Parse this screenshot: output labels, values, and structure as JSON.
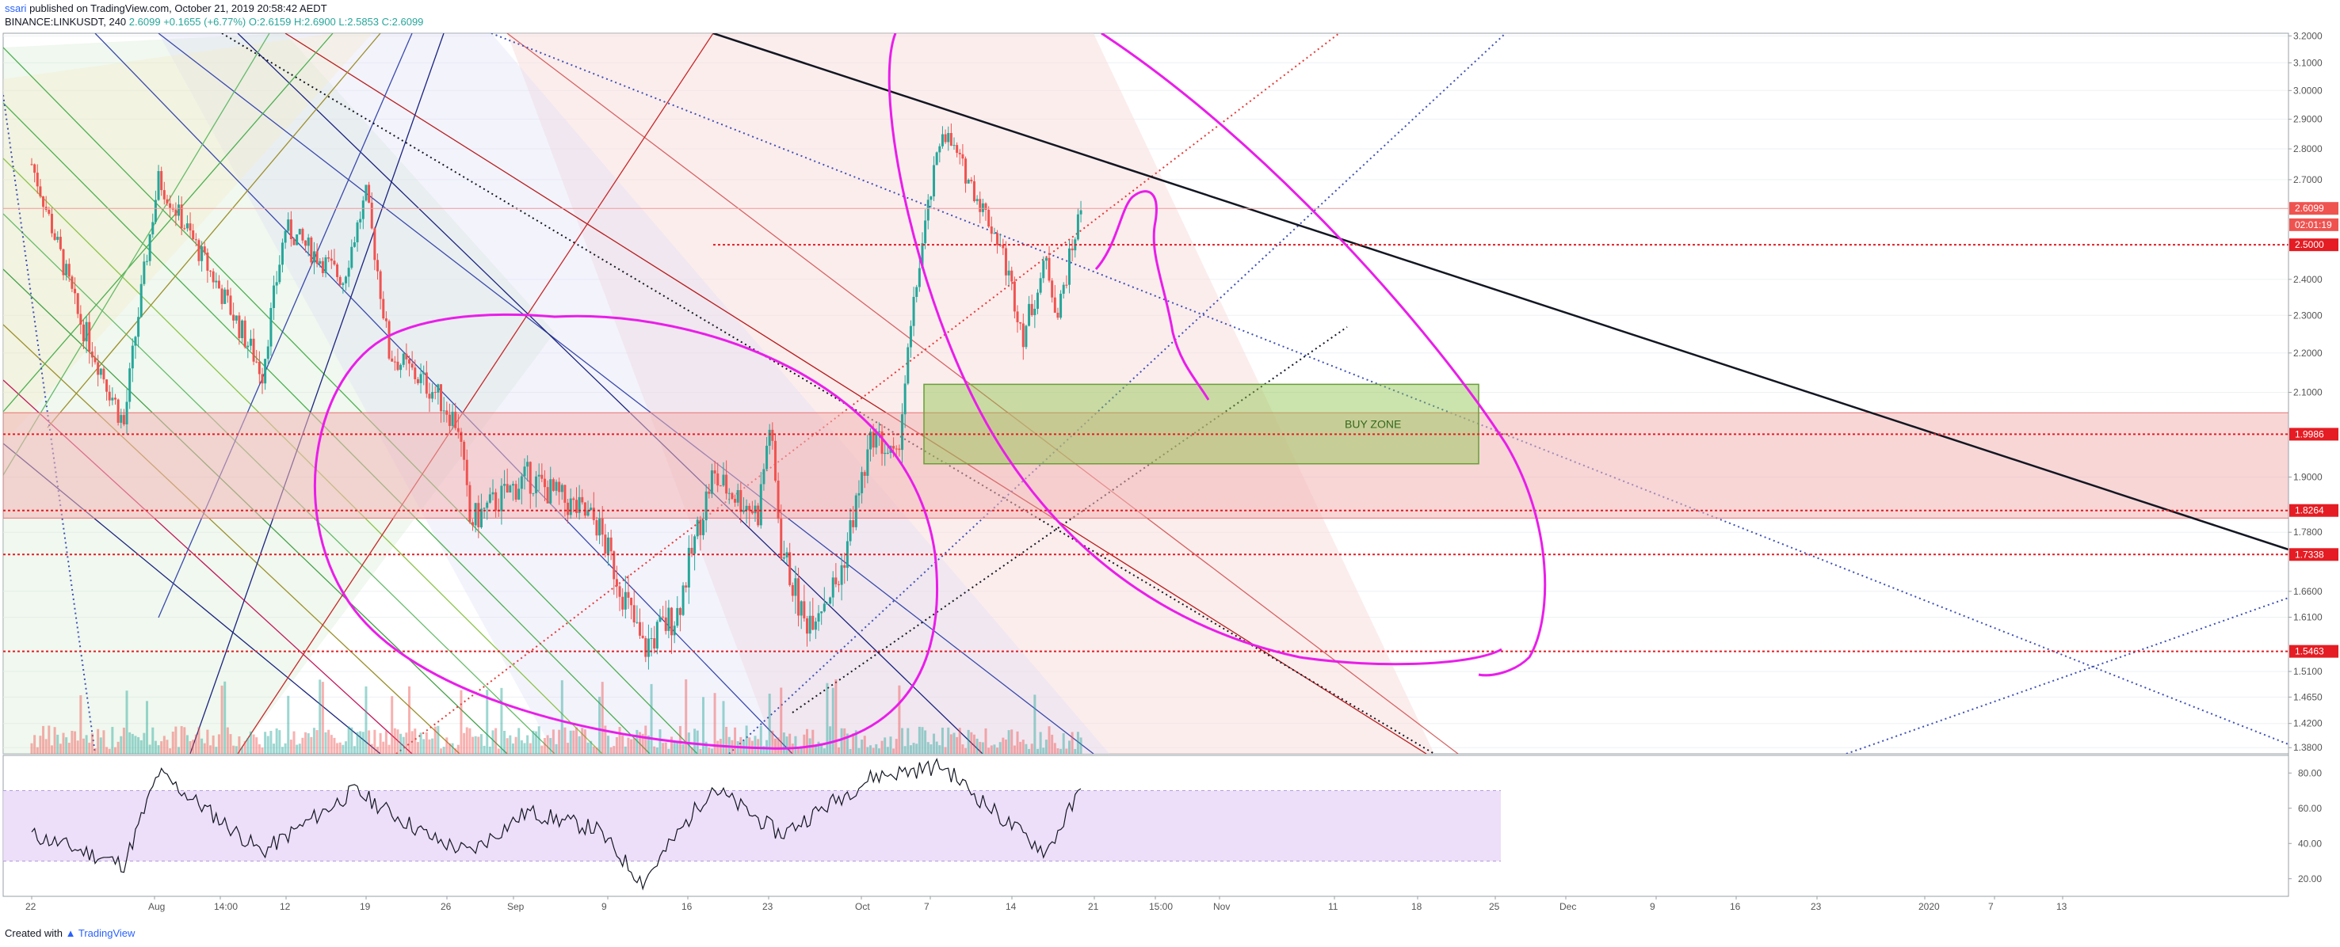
{
  "header": {
    "user": "ssari",
    "published_text": "published on TradingView.com, October 21, 2019 20:58:42 AEDT",
    "symbol_line": "BINANCE:LINKUSDT, 240",
    "last": "2.6099",
    "change": "+0.1655 (+6.77%)",
    "open": "O:2.6159",
    "high": "H:2.6900",
    "low": "L:2.5853",
    "close": "C:2.6099"
  },
  "colors": {
    "up": "#26a69a",
    "down": "#ef5350",
    "magenta": "#e91ee9",
    "level_red": "#e51c23",
    "buy_zone": "#8bc34a",
    "rsi_band": "#e9d6f7",
    "rsi_line": "#131722"
  },
  "price_axis": {
    "ticks": [
      "3.2000",
      "3.1000",
      "3.0000",
      "2.9000",
      "2.8000",
      "2.7000",
      "2.4000",
      "2.3000",
      "2.2000",
      "2.1000",
      "1.9000",
      "1.7800",
      "1.6600",
      "1.6100",
      "1.5100",
      "1.4650",
      "1.4200",
      "1.3800"
    ],
    "tags": [
      {
        "label": "2.6099",
        "price": 2.6099,
        "color": "#ef5350"
      },
      {
        "label": "02:01:19",
        "price": 2.56,
        "color": "#ef5350"
      },
      {
        "label": "2.5000",
        "price": 2.5,
        "color": "#e51c23"
      },
      {
        "label": "1.9986",
        "price": 1.9986,
        "color": "#e51c23"
      },
      {
        "label": "1.8264",
        "price": 1.8264,
        "color": "#e51c23"
      },
      {
        "label": "1.7338",
        "price": 1.7338,
        "color": "#e51c23"
      },
      {
        "label": "1.5463",
        "price": 1.5463,
        "color": "#e51c23"
      }
    ]
  },
  "rsi_axis": {
    "ticks": [
      "80.00",
      "60.00",
      "40.00",
      "20.00"
    ],
    "band_top": 70,
    "band_bottom": 30
  },
  "time_axis": {
    "labels": [
      "22",
      "Aug",
      "14:00",
      "12",
      "19",
      "26",
      "Sep",
      "9",
      "16",
      "23",
      "Oct",
      "7",
      "14",
      "21",
      "15:00",
      "Nov",
      "11",
      "18",
      "25",
      "Dec",
      "9",
      "16",
      "23",
      "2020",
      "7",
      "13"
    ]
  },
  "annotations": {
    "buy_zone_label": "BUY ZONE"
  },
  "footer": {
    "created_with": "Created with",
    "brand": "TradingView"
  },
  "chart_data": {
    "type": "line",
    "series_kind": "candlestick",
    "symbol": "BINANCE:LINKUSDT",
    "interval": "240",
    "ylim": [
      1.37,
      3.21
    ],
    "price_levels": [
      2.5,
      1.9986,
      1.8264,
      1.7338,
      1.5463
    ],
    "buy_zone": [
      1.93,
      2.12
    ],
    "price_path": [
      {
        "x": "Jul 22",
        "y": 2.75
      },
      {
        "x": "Jul 26",
        "y": 2.3
      },
      {
        "x": "Jul 30",
        "y": 2.02
      },
      {
        "x": "Aug 2",
        "y": 2.7
      },
      {
        "x": "Aug 6",
        "y": 2.45
      },
      {
        "x": "Aug 11",
        "y": 2.15
      },
      {
        "x": "Aug 13",
        "y": 2.55
      },
      {
        "x": "Aug 18",
        "y": 2.4
      },
      {
        "x": "Aug 20",
        "y": 2.65
      },
      {
        "x": "Aug 22",
        "y": 2.2
      },
      {
        "x": "Aug 26",
        "y": 2.1
      },
      {
        "x": "Aug 28",
        "y": 2.02
      },
      {
        "x": "Aug 29",
        "y": 1.8
      },
      {
        "x": "Sep 3",
        "y": 1.9
      },
      {
        "x": "Sep 9",
        "y": 1.8
      },
      {
        "x": "Sep 13",
        "y": 1.55
      },
      {
        "x": "Sep 16",
        "y": 1.62
      },
      {
        "x": "Sep 19",
        "y": 1.9
      },
      {
        "x": "Sep 23",
        "y": 1.82
      },
      {
        "x": "Sep 24",
        "y": 2.02
      },
      {
        "x": "Sep 25",
        "y": 1.75
      },
      {
        "x": "Sep 27",
        "y": 1.6
      },
      {
        "x": "Sep 30",
        "y": 1.68
      },
      {
        "x": "Oct 3",
        "y": 2.0
      },
      {
        "x": "Oct 5",
        "y": 1.93
      },
      {
        "x": "Oct 7",
        "y": 2.45
      },
      {
        "x": "Oct 9",
        "y": 2.87
      },
      {
        "x": "Oct 11",
        "y": 2.72
      },
      {
        "x": "Oct 14",
        "y": 2.5
      },
      {
        "x": "Oct 16",
        "y": 2.25
      },
      {
        "x": "Oct 18",
        "y": 2.45
      },
      {
        "x": "Oct 19",
        "y": 2.3
      },
      {
        "x": "Oct 21",
        "y": 2.61
      }
    ],
    "rsi_path": [
      {
        "x": "Jul 22",
        "y": 45
      },
      {
        "x": "Jul 30",
        "y": 28
      },
      {
        "x": "Aug 2",
        "y": 80
      },
      {
        "x": "Aug 11",
        "y": 35
      },
      {
        "x": "Aug 19",
        "y": 70
      },
      {
        "x": "Aug 26",
        "y": 42
      },
      {
        "x": "Aug 29",
        "y": 35
      },
      {
        "x": "Sep 3",
        "y": 58
      },
      {
        "x": "Sep 9",
        "y": 48
      },
      {
        "x": "Sep 13",
        "y": 18
      },
      {
        "x": "Sep 19",
        "y": 72
      },
      {
        "x": "Sep 25",
        "y": 45
      },
      {
        "x": "Oct 3",
        "y": 78
      },
      {
        "x": "Oct 9",
        "y": 84
      },
      {
        "x": "Oct 14",
        "y": 55
      },
      {
        "x": "Oct 18",
        "y": 35
      },
      {
        "x": "Oct 21",
        "y": 70
      }
    ]
  }
}
